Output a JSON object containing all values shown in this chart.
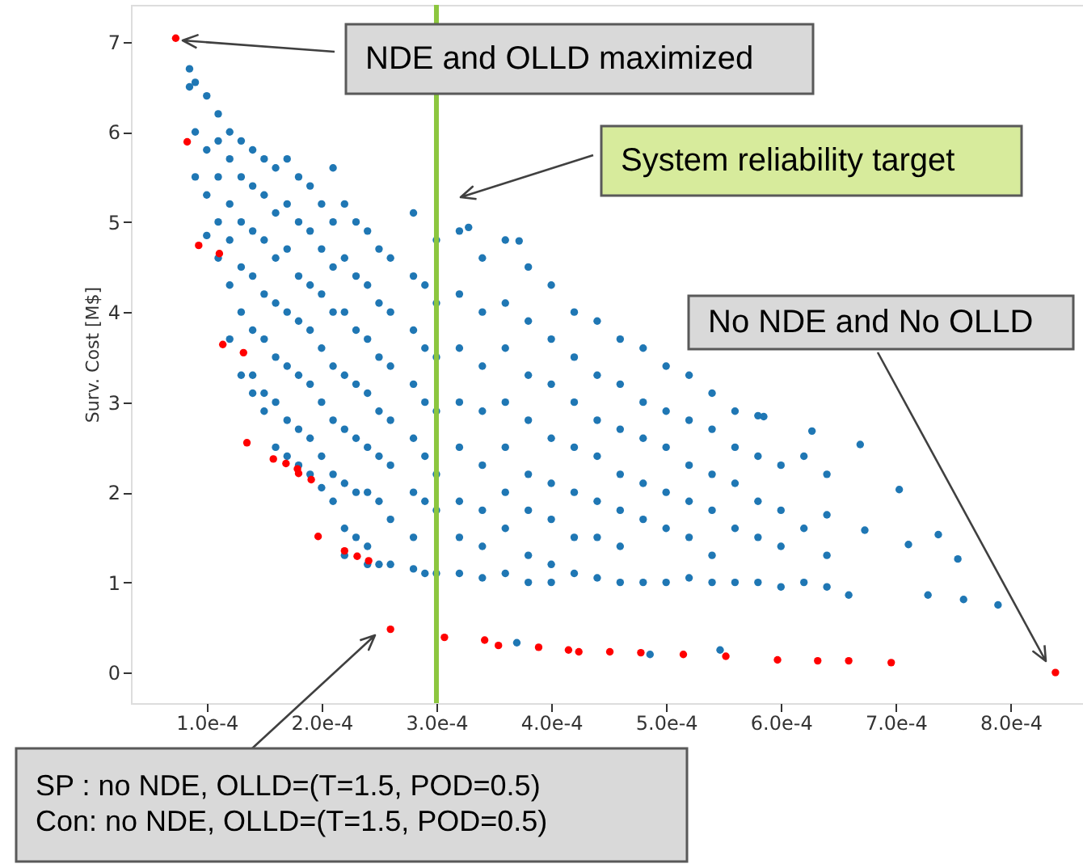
{
  "chart_data": {
    "type": "scatter",
    "ylabel": "Surv. Cost [M$]",
    "marker": "circle",
    "xlim": [
      3.4e-05,
      0.000863
    ],
    "ylim": [
      -0.34,
      7.41
    ],
    "xticks": [
      {
        "value": 0.0001,
        "label": "1.0e-4"
      },
      {
        "value": 0.0002,
        "label": "2.0e-4"
      },
      {
        "value": 0.0003,
        "label": "3.0e-4"
      },
      {
        "value": 0.0004,
        "label": "4.0e-4"
      },
      {
        "value": 0.0005,
        "label": "5.0e-4"
      },
      {
        "value": 0.0006,
        "label": "6.0e-4"
      },
      {
        "value": 0.0007,
        "label": "7.0e-4"
      },
      {
        "value": 0.0008,
        "label": "8.0e-4"
      }
    ],
    "yticks": [
      0,
      1,
      2,
      3,
      4,
      5,
      6,
      7
    ],
    "series": [
      {
        "color": "#1f77b4",
        "x": [
          8.5e-05,
          8.5e-05,
          9e-05,
          9e-05,
          9e-05,
          0.0001,
          0.0001,
          0.0001,
          0.0001,
          0.00011,
          0.00011,
          0.00011,
          0.00011,
          0.00011,
          0.00012,
          0.00012,
          0.00012,
          0.00012,
          0.00012,
          0.00012,
          0.00013,
          0.00013,
          0.00013,
          0.00013,
          0.00013,
          0.00013,
          0.00014,
          0.00014,
          0.00014,
          0.00014,
          0.00014,
          0.00014,
          0.00014,
          0.00015,
          0.00015,
          0.00015,
          0.00015,
          0.00015,
          0.00015,
          0.00015,
          0.00016,
          0.00016,
          0.00016,
          0.00016,
          0.00016,
          0.00016,
          0.00016,
          0.00017,
          0.00017,
          0.00017,
          0.00017,
          0.00017,
          0.00017,
          0.00017,
          0.00018,
          0.00018,
          0.00018,
          0.00018,
          0.00018,
          0.00018,
          0.00018,
          0.00019,
          0.00019,
          0.00019,
          0.00019,
          0.00019,
          0.00019,
          0.00019,
          0.0002,
          0.0002,
          0.0002,
          0.0002,
          0.0002,
          0.0002,
          0.0002,
          0.00021,
          0.00021,
          0.00021,
          0.00021,
          0.00021,
          0.00021,
          0.00021,
          0.00021,
          0.00022,
          0.00022,
          0.00022,
          0.00022,
          0.00022,
          0.00022,
          0.00022,
          0.00022,
          0.00023,
          0.00023,
          0.00023,
          0.00023,
          0.00023,
          0.00023,
          0.00023,
          0.00024,
          0.00024,
          0.00024,
          0.00024,
          0.00024,
          0.00024,
          0.00024,
          0.00024,
          0.00025,
          0.00025,
          0.00025,
          0.00025,
          0.00025,
          0.00025,
          0.00025,
          0.00026,
          0.00026,
          0.00026,
          0.00026,
          0.00026,
          0.00026,
          0.00026,
          0.00028,
          0.00028,
          0.00028,
          0.00028,
          0.00028,
          0.00028,
          0.00028,
          0.00028,
          0.00029,
          0.00029,
          0.00029,
          0.00029,
          0.00029,
          0.00029,
          0.0003,
          0.0003,
          0.0003,
          0.0003,
          0.0003,
          0.0003,
          0.0003,
          0.00032,
          0.00032,
          0.00032,
          0.00032,
          0.00032,
          0.00032,
          0.00032,
          0.00032,
          0.00034,
          0.00034,
          0.00034,
          0.00034,
          0.00034,
          0.00034,
          0.00034,
          0.00034,
          0.00036,
          0.00036,
          0.00036,
          0.00036,
          0.00036,
          0.00036,
          0.00036,
          0.00036,
          0.00038,
          0.00038,
          0.00038,
          0.00038,
          0.00038,
          0.00038,
          0.00038,
          0.00038,
          0.0004,
          0.0004,
          0.0004,
          0.0004,
          0.0004,
          0.0004,
          0.0004,
          0.0004,
          0.00042,
          0.00042,
          0.00042,
          0.00042,
          0.00042,
          0.00042,
          0.00042,
          0.00044,
          0.00044,
          0.00044,
          0.00044,
          0.00044,
          0.00044,
          0.00044,
          0.00046,
          0.00046,
          0.00046,
          0.00046,
          0.00046,
          0.00046,
          0.00046,
          0.00048,
          0.00048,
          0.00048,
          0.00048,
          0.00048,
          0.00048,
          0.0005,
          0.0005,
          0.0005,
          0.0005,
          0.0005,
          0.0005,
          0.00052,
          0.00052,
          0.00052,
          0.00052,
          0.00052,
          0.00052,
          0.00054,
          0.00054,
          0.00054,
          0.00054,
          0.00054,
          0.00054,
          0.00056,
          0.00056,
          0.00056,
          0.00056,
          0.00056,
          0.00058,
          0.00058,
          0.00058,
          0.00058,
          0.00058,
          0.0006,
          0.0006,
          0.0006,
          0.0006,
          0.00062,
          0.00062,
          0.00062,
          0.00064,
          0.00064,
          0.00064,
          0.00064,
          0.000627,
          0.000669,
          0.000703,
          0.000737,
          0.000754,
          0.000728,
          0.000759,
          0.000789,
          0.000659,
          0.000673,
          0.000711,
          0.000585,
          0.00037,
          0.000486,
          0.000547,
          0.000328,
          0.000372
        ],
        "values": [
          6.7,
          6.5,
          6.55,
          6.0,
          5.5,
          6.4,
          5.8,
          5.3,
          4.85,
          6.2,
          5.9,
          5.5,
          5.0,
          4.6,
          6.0,
          5.7,
          5.2,
          4.8,
          4.3,
          3.7,
          5.9,
          5.5,
          5.0,
          4.5,
          4.0,
          3.3,
          5.8,
          5.4,
          4.9,
          4.4,
          3.8,
          3.3,
          3.1,
          5.7,
          5.3,
          4.8,
          4.2,
          3.7,
          3.1,
          2.9,
          5.6,
          5.1,
          4.6,
          4.1,
          3.5,
          3.0,
          2.5,
          5.7,
          5.2,
          4.7,
          4.0,
          3.4,
          2.8,
          2.4,
          5.5,
          5.0,
          4.4,
          3.9,
          3.3,
          2.7,
          2.3,
          5.4,
          4.9,
          4.3,
          3.8,
          3.2,
          2.6,
          2.2,
          5.2,
          4.7,
          4.2,
          3.6,
          3.0,
          2.4,
          2.05,
          5.6,
          5.0,
          4.5,
          4.0,
          3.4,
          2.8,
          2.2,
          1.9,
          5.2,
          4.6,
          4.0,
          3.3,
          2.7,
          2.1,
          1.6,
          1.3,
          5.0,
          4.4,
          3.8,
          3.2,
          2.6,
          2.0,
          1.5,
          4.9,
          4.3,
          3.7,
          3.1,
          2.5,
          2.0,
          1.4,
          1.2,
          4.7,
          4.1,
          3.5,
          2.9,
          2.4,
          1.9,
          1.2,
          4.6,
          4.0,
          3.4,
          2.8,
          2.3,
          1.7,
          1.2,
          5.1,
          4.4,
          3.8,
          3.2,
          2.6,
          2.0,
          1.5,
          1.15,
          4.3,
          3.6,
          3.0,
          2.4,
          1.9,
          1.1,
          4.8,
          4.1,
          3.5,
          2.9,
          2.2,
          1.8,
          1.1,
          4.9,
          4.2,
          3.6,
          3.0,
          2.5,
          1.9,
          1.5,
          1.1,
          4.6,
          4.0,
          3.4,
          2.9,
          2.3,
          1.8,
          1.4,
          1.05,
          4.8,
          4.1,
          3.6,
          3.0,
          2.5,
          2.0,
          1.6,
          1.1,
          4.5,
          3.9,
          3.3,
          2.8,
          2.2,
          1.8,
          1.3,
          1.0,
          4.3,
          3.7,
          3.2,
          2.6,
          2.1,
          1.7,
          1.2,
          1.0,
          4.0,
          3.5,
          3.0,
          2.5,
          2.0,
          1.5,
          1.1,
          3.9,
          3.3,
          2.8,
          2.4,
          1.9,
          1.5,
          1.05,
          3.7,
          3.2,
          2.7,
          2.2,
          1.8,
          1.4,
          1.0,
          3.6,
          3.0,
          2.6,
          2.1,
          1.7,
          1.0,
          3.4,
          2.9,
          2.5,
          2.0,
          1.6,
          1.0,
          3.3,
          2.8,
          2.3,
          1.9,
          1.5,
          1.05,
          3.1,
          2.7,
          2.2,
          1.8,
          1.3,
          1.0,
          2.9,
          2.5,
          2.1,
          1.6,
          1.0,
          2.85,
          2.4,
          1.9,
          1.5,
          1.0,
          2.3,
          1.8,
          1.4,
          0.95,
          2.4,
          1.6,
          1.0,
          2.2,
          1.75,
          1.3,
          0.95,
          2.68,
          2.53,
          2.03,
          1.53,
          1.26,
          0.86,
          0.81,
          0.75,
          0.86,
          1.58,
          1.42,
          2.84,
          0.33,
          0.2,
          0.25,
          4.94,
          4.79
        ]
      },
      {
        "color": "#ff0000",
        "x": [
          7.3e-05,
          8.3e-05,
          9.3e-05,
          0.000111,
          0.000114,
          0.000132,
          0.000135,
          0.000158,
          0.000169,
          0.000179,
          0.00018,
          0.000191,
          0.000197,
          0.00022,
          0.000231,
          0.000241,
          0.00026,
          0.000307,
          0.000342,
          0.000354,
          0.000389,
          0.000415,
          0.000424,
          0.000451,
          0.000478,
          0.000515,
          0.000552,
          0.000597,
          0.000632,
          0.000659,
          0.000696,
          0.000839
        ],
        "values": [
          7.04,
          5.89,
          4.74,
          4.65,
          3.64,
          3.55,
          2.55,
          2.37,
          2.32,
          2.26,
          2.21,
          2.14,
          1.51,
          1.35,
          1.29,
          1.24,
          0.48,
          0.39,
          0.36,
          0.3,
          0.28,
          0.25,
          0.23,
          0.23,
          0.22,
          0.2,
          0.18,
          0.14,
          0.13,
          0.13,
          0.11,
          0.0
        ]
      }
    ],
    "ref_lines": [
      {
        "axis": "x",
        "value": 0.0003,
        "color": "#8cc63f"
      }
    ],
    "annotations": [
      "NDE and OLLD maximized",
      "System reliability target",
      "No NDE and No OLLD",
      "SP  : no NDE, OLLD=(T=1.5, POD=0.5)\nCon: no NDE, OLLD=(T=1.5, POD=0.5)"
    ]
  }
}
